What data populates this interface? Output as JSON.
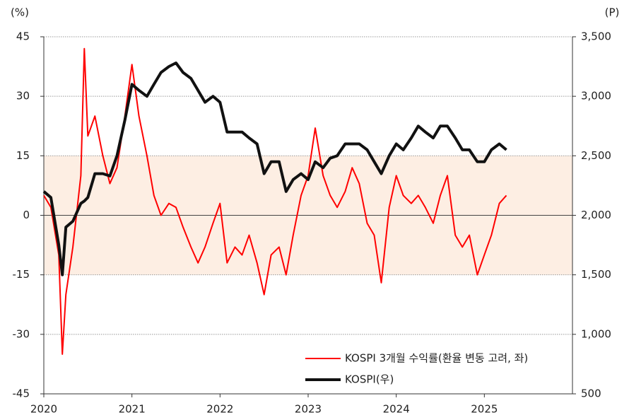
{
  "chart_data": {
    "type": "line",
    "ylabel": "(%)",
    "y2label": "(P)",
    "xlim": [
      2020,
      2026
    ],
    "xticks": [
      2020,
      2021,
      2022,
      2023,
      2024,
      2025
    ],
    "ylim": [
      -45,
      45
    ],
    "yticks": [
      45,
      30,
      15,
      0,
      -15,
      -30,
      -45
    ],
    "y2lim": [
      500,
      3500
    ],
    "y2ticks": [
      {
        "value": 3500,
        "label": "3,500"
      },
      {
        "value": 3000,
        "label": "3,000"
      },
      {
        "value": 2500,
        "label": "2,500"
      },
      {
        "value": 2000,
        "label": "2,000"
      },
      {
        "value": 1500,
        "label": "1,500"
      },
      {
        "value": 1000,
        "label": "1,000"
      },
      {
        "value": 500,
        "label": "500"
      }
    ],
    "grid": true,
    "shaded_range": [
      -15,
      15
    ],
    "shaded_color": "#fdeee3",
    "legend": "lower right",
    "x": [
      2020.0,
      2020.08,
      2020.17,
      2020.21,
      2020.25,
      2020.33,
      2020.42,
      2020.46,
      2020.5,
      2020.58,
      2020.67,
      2020.75,
      2020.83,
      2020.92,
      2021.0,
      2021.08,
      2021.17,
      2021.25,
      2021.33,
      2021.42,
      2021.5,
      2021.58,
      2021.67,
      2021.75,
      2021.83,
      2021.92,
      2022.0,
      2022.08,
      2022.17,
      2022.25,
      2022.33,
      2022.42,
      2022.5,
      2022.58,
      2022.67,
      2022.75,
      2022.83,
      2022.92,
      2023.0,
      2023.08,
      2023.17,
      2023.25,
      2023.33,
      2023.42,
      2023.5,
      2023.58,
      2023.67,
      2023.75,
      2023.83,
      2023.92,
      2024.0,
      2024.08,
      2024.17,
      2024.25,
      2024.33,
      2024.42,
      2024.5,
      2024.58,
      2024.67,
      2024.75,
      2024.83,
      2024.92,
      2025.0,
      2025.08,
      2025.17,
      2025.25
    ],
    "series": [
      {
        "name": "KOSPI 3개월 수익률(환율 변동 고려, 좌)",
        "color": "#ff0000",
        "width": 2,
        "values": [
          5,
          2,
          -10,
          -35,
          -20,
          -8,
          10,
          42,
          20,
          25,
          15,
          8,
          12,
          25,
          38,
          25,
          15,
          5,
          0,
          3,
          2,
          -3,
          -8,
          -12,
          -8,
          -2,
          3,
          -12,
          -8,
          -10,
          -5,
          -12,
          -20,
          -10,
          -8,
          -15,
          -5,
          5,
          10,
          22,
          10,
          5,
          2,
          6,
          12,
          8,
          -2,
          -5,
          -17,
          2,
          10,
          5,
          3,
          5,
          2,
          -2,
          5,
          10,
          -5,
          -8,
          -5,
          -15,
          -10,
          -5,
          3,
          5
        ]
      },
      {
        "name": "KOSPI(우)",
        "color": "#111111",
        "width": 4,
        "axis": "y2",
        "values": [
          2200,
          2150,
          1750,
          1500,
          1900,
          1950,
          2100,
          2120,
          2150,
          2350,
          2350,
          2330,
          2500,
          2800,
          3100,
          3050,
          3000,
          3100,
          3200,
          3250,
          3280,
          3200,
          3150,
          3050,
          2950,
          3000,
          2950,
          2700,
          2700,
          2700,
          2650,
          2600,
          2350,
          2450,
          2450,
          2200,
          2300,
          2350,
          2300,
          2450,
          2400,
          2480,
          2500,
          2600,
          2600,
          2600,
          2550,
          2450,
          2350,
          2500,
          2600,
          2550,
          2650,
          2750,
          2700,
          2650,
          2750,
          2750,
          2650,
          2550,
          2550,
          2450,
          2450,
          2550,
          2600,
          2550
        ]
      }
    ]
  }
}
